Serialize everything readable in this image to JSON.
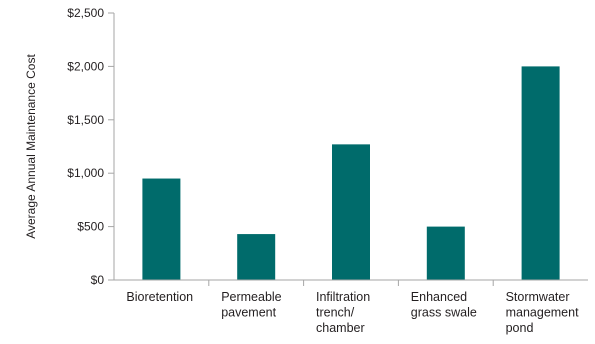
{
  "chart_data": {
    "type": "bar",
    "title": "",
    "xlabel": "",
    "ylabel": "Average Annual Maintenance Cost",
    "categories": [
      [
        "Bioretention"
      ],
      [
        "Permeable",
        "pavement"
      ],
      [
        "Infiltration",
        "trench/",
        "chamber"
      ],
      [
        "Enhanced",
        "grass swale"
      ],
      [
        "Stormwater",
        "management",
        "pond"
      ]
    ],
    "values": [
      950,
      430,
      1270,
      500,
      2000
    ],
    "ylim": [
      0,
      2500
    ],
    "yticks": [
      0,
      500,
      1000,
      1500,
      2000,
      2500
    ],
    "ytick_labels": [
      "$0",
      "$500",
      "$1,000",
      "$1,500",
      "$2,000",
      "$2,500"
    ],
    "grid": false,
    "legend": "none",
    "bar_color": "#006b6b",
    "axis_color": "#a6a6a6"
  }
}
